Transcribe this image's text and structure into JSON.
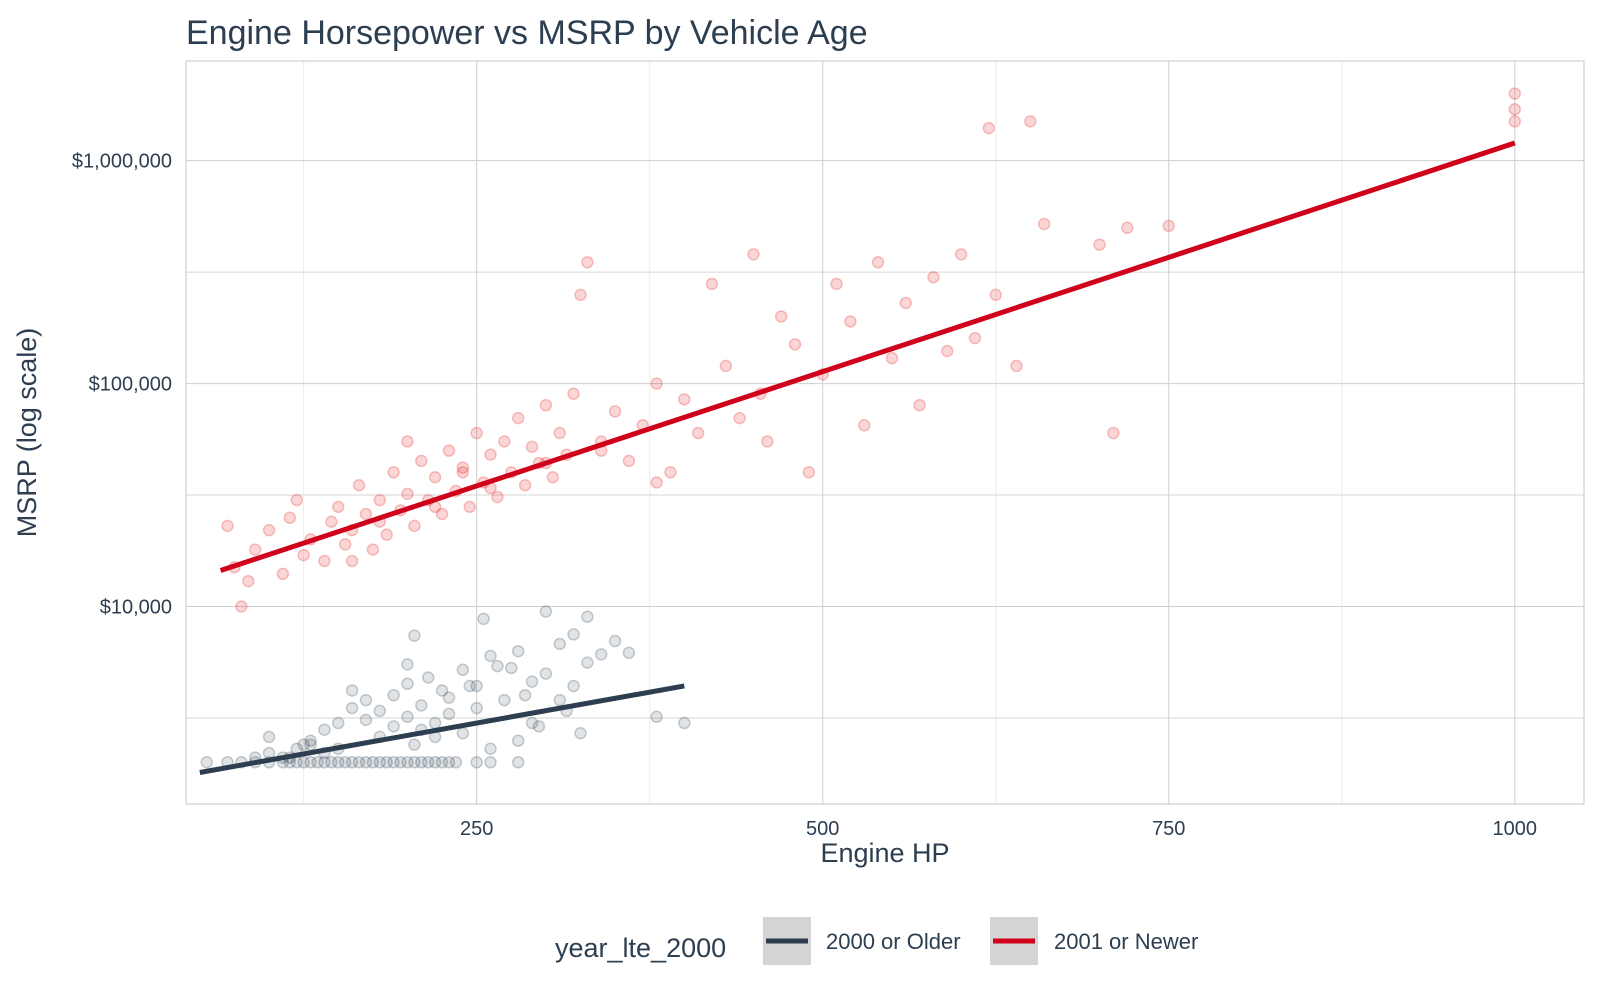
{
  "chart_data": {
    "type": "scatter",
    "title": "Engine Horsepower vs MSRP by Vehicle Age",
    "xlabel": "Engine HP",
    "ylabel": "MSRP (log scale)",
    "xlim": [
      40,
      1050
    ],
    "ylim": [
      1300,
      2800000
    ],
    "y_scale": "log",
    "x_ticks": [
      250,
      500,
      750,
      1000
    ],
    "x_tick_labels": [
      "250",
      "500",
      "750",
      "1000"
    ],
    "y_ticks": [
      10000,
      100000,
      1000000
    ],
    "y_tick_labels": [
      "$10,000",
      "$100,000",
      "$1,000,000"
    ],
    "grid": true,
    "legend": {
      "title": "year_lte_2000",
      "position": "bottom"
    },
    "series": [
      {
        "name": "2000 or Older",
        "color": "#2c3e50",
        "point_color": "#2c3e50",
        "trend": {
          "x": [
            50,
            400
          ],
          "y": [
            1800,
            4400
          ]
        },
        "points": [
          [
            55,
            2000
          ],
          [
            70,
            2000
          ],
          [
            80,
            2000
          ],
          [
            90,
            2000
          ],
          [
            100,
            2000
          ],
          [
            110,
            2000
          ],
          [
            115,
            2100
          ],
          [
            120,
            2000
          ],
          [
            125,
            2000
          ],
          [
            130,
            2000
          ],
          [
            135,
            2000
          ],
          [
            140,
            2000
          ],
          [
            145,
            2000
          ],
          [
            150,
            2000
          ],
          [
            155,
            2000
          ],
          [
            160,
            2000
          ],
          [
            165,
            2000
          ],
          [
            170,
            2000
          ],
          [
            175,
            2000
          ],
          [
            180,
            2000
          ],
          [
            185,
            2000
          ],
          [
            190,
            2000
          ],
          [
            195,
            2000
          ],
          [
            200,
            2000
          ],
          [
            205,
            2000
          ],
          [
            210,
            2000
          ],
          [
            215,
            2000
          ],
          [
            220,
            2000
          ],
          [
            225,
            2000
          ],
          [
            230,
            2000
          ],
          [
            235,
            2000
          ],
          [
            250,
            2000
          ],
          [
            260,
            2000
          ],
          [
            280,
            2000
          ],
          [
            90,
            2100
          ],
          [
            100,
            2200
          ],
          [
            110,
            2100
          ],
          [
            120,
            2300
          ],
          [
            130,
            2500
          ],
          [
            140,
            2800
          ],
          [
            150,
            3000
          ],
          [
            160,
            3500
          ],
          [
            160,
            4200
          ],
          [
            170,
            3800
          ],
          [
            170,
            3100
          ],
          [
            180,
            2600
          ],
          [
            180,
            3400
          ],
          [
            190,
            4000
          ],
          [
            190,
            2900
          ],
          [
            200,
            3200
          ],
          [
            200,
            4500
          ],
          [
            200,
            5500
          ],
          [
            205,
            2400
          ],
          [
            210,
            3600
          ],
          [
            210,
            2800
          ],
          [
            215,
            4800
          ],
          [
            220,
            3000
          ],
          [
            220,
            2600
          ],
          [
            225,
            4200
          ],
          [
            230,
            3300
          ],
          [
            230,
            3900
          ],
          [
            240,
            2700
          ],
          [
            240,
            5200
          ],
          [
            250,
            3500
          ],
          [
            250,
            4400
          ],
          [
            255,
            8800
          ],
          [
            260,
            2300
          ],
          [
            260,
            6000
          ],
          [
            270,
            3800
          ],
          [
            275,
            5300
          ],
          [
            280,
            6300
          ],
          [
            280,
            2500
          ],
          [
            290,
            4600
          ],
          [
            290,
            3000
          ],
          [
            300,
            9500
          ],
          [
            300,
            5000
          ],
          [
            310,
            3800
          ],
          [
            310,
            6800
          ],
          [
            320,
            4400
          ],
          [
            320,
            7500
          ],
          [
            330,
            5600
          ],
          [
            330,
            9000
          ],
          [
            340,
            6100
          ],
          [
            350,
            7000
          ],
          [
            360,
            6200
          ],
          [
            380,
            3200
          ],
          [
            400,
            3000
          ],
          [
            100,
            2600
          ],
          [
            130,
            2400
          ],
          [
            150,
            2300
          ],
          [
            140,
            2200
          ],
          [
            125,
            2400
          ],
          [
            115,
            2000
          ],
          [
            205,
            7400
          ],
          [
            245,
            4400
          ],
          [
            265,
            5400
          ],
          [
            285,
            4000
          ],
          [
            295,
            2900
          ],
          [
            315,
            3400
          ],
          [
            325,
            2700
          ]
        ]
      },
      {
        "name": "2001 or Newer",
        "color": "#d0021b",
        "point_color": "#e31a1c",
        "trend": {
          "x": [
            65,
            1000
          ],
          "y": [
            14500,
            1200000
          ]
        },
        "points": [
          [
            70,
            23000
          ],
          [
            75,
            15000
          ],
          [
            80,
            10000
          ],
          [
            85,
            13000
          ],
          [
            90,
            18000
          ],
          [
            100,
            22000
          ],
          [
            110,
            14000
          ],
          [
            115,
            25000
          ],
          [
            120,
            30000
          ],
          [
            125,
            17000
          ],
          [
            130,
            20000
          ],
          [
            140,
            16000
          ],
          [
            145,
            24000
          ],
          [
            150,
            28000
          ],
          [
            155,
            19000
          ],
          [
            160,
            22000
          ],
          [
            165,
            35000
          ],
          [
            170,
            26000
          ],
          [
            175,
            18000
          ],
          [
            180,
            30000
          ],
          [
            185,
            21000
          ],
          [
            190,
            40000
          ],
          [
            195,
            27000
          ],
          [
            200,
            32000
          ],
          [
            205,
            23000
          ],
          [
            210,
            45000
          ],
          [
            215,
            30000
          ],
          [
            220,
            38000
          ],
          [
            225,
            26000
          ],
          [
            230,
            50000
          ],
          [
            235,
            33000
          ],
          [
            240,
            42000
          ],
          [
            245,
            28000
          ],
          [
            250,
            60000
          ],
          [
            255,
            36000
          ],
          [
            260,
            48000
          ],
          [
            265,
            31000
          ],
          [
            270,
            55000
          ],
          [
            275,
            40000
          ],
          [
            280,
            70000
          ],
          [
            285,
            35000
          ],
          [
            290,
            52000
          ],
          [
            295,
            44000
          ],
          [
            300,
            80000
          ],
          [
            305,
            38000
          ],
          [
            310,
            60000
          ],
          [
            315,
            48000
          ],
          [
            320,
            90000
          ],
          [
            325,
            250000
          ],
          [
            330,
            350000
          ],
          [
            340,
            55000
          ],
          [
            350,
            75000
          ],
          [
            360,
            45000
          ],
          [
            370,
            65000
          ],
          [
            380,
            100000
          ],
          [
            390,
            40000
          ],
          [
            400,
            85000
          ],
          [
            410,
            60000
          ],
          [
            420,
            280000
          ],
          [
            430,
            120000
          ],
          [
            440,
            70000
          ],
          [
            450,
            380000
          ],
          [
            455,
            90000
          ],
          [
            460,
            55000
          ],
          [
            470,
            200000
          ],
          [
            480,
            150000
          ],
          [
            490,
            40000
          ],
          [
            500,
            110000
          ],
          [
            510,
            280000
          ],
          [
            520,
            190000
          ],
          [
            530,
            65000
          ],
          [
            540,
            350000
          ],
          [
            550,
            130000
          ],
          [
            560,
            230000
          ],
          [
            570,
            80000
          ],
          [
            580,
            300000
          ],
          [
            590,
            140000
          ],
          [
            600,
            380000
          ],
          [
            610,
            160000
          ],
          [
            620,
            1400000
          ],
          [
            625,
            250000
          ],
          [
            640,
            120000
          ],
          [
            650,
            1500000
          ],
          [
            660,
            520000
          ],
          [
            700,
            420000
          ],
          [
            710,
            60000
          ],
          [
            720,
            500000
          ],
          [
            750,
            510000
          ],
          [
            1000,
            1700000
          ],
          [
            1000,
            1500000
          ],
          [
            1000,
            2000000
          ],
          [
            160,
            16000
          ],
          [
            200,
            55000
          ],
          [
            240,
            40000
          ],
          [
            180,
            24000
          ],
          [
            220,
            28000
          ],
          [
            260,
            34000
          ],
          [
            300,
            44000
          ],
          [
            340,
            50000
          ],
          [
            380,
            36000
          ]
        ]
      }
    ]
  }
}
